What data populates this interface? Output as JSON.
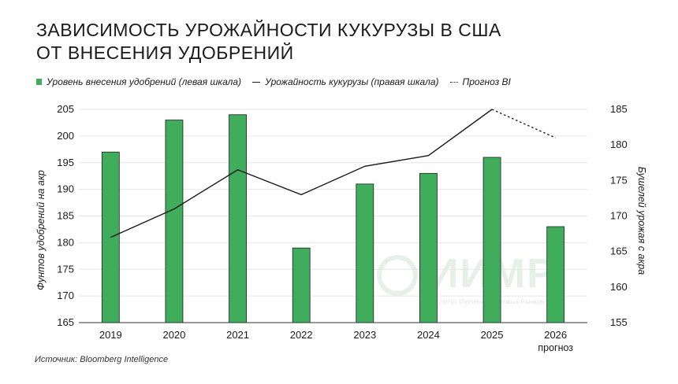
{
  "title": {
    "line1": "Зависимость урожайности кукурузы в США",
    "line2": "от внесения удобрений"
  },
  "legend": {
    "bars": "Уровень внесения удобрений (левая шкала)",
    "line": "Урожайность кукурузы (правая шкала)",
    "forecast": "Прогноз BI"
  },
  "source": "Источник: Bloomberg Intelligence",
  "watermark": {
    "name": "ИИМР",
    "subtitle": "Институт Изучения Мировых Рынков"
  },
  "colors": {
    "bar": "#3fad5b",
    "bar_edge": "#1f1f1f",
    "line": "#1a1a1a",
    "grid": "#e6e6e6"
  },
  "chart_data": {
    "type": "bar",
    "categories": [
      "2019",
      "2020",
      "2021",
      "2022",
      "2023",
      "2024",
      "2025",
      "2026"
    ],
    "category_sublabels": [
      "",
      "",
      "",
      "",
      "",
      "",
      "",
      "прогноз"
    ],
    "series": [
      {
        "name": "Уровень внесения удобрений (левая шкала)",
        "type": "bar",
        "axis": "left",
        "values": [
          197,
          203,
          204,
          179,
          191,
          193,
          196,
          183
        ]
      },
      {
        "name": "Урожайность кукурузы (правая шкала)",
        "type": "line",
        "axis": "right",
        "values": [
          167,
          171,
          176.5,
          173,
          177,
          178.5,
          185,
          null
        ]
      },
      {
        "name": "Прогноз BI",
        "type": "line-dotted",
        "axis": "right",
        "values": [
          null,
          null,
          null,
          null,
          null,
          null,
          185,
          181
        ]
      }
    ],
    "ylabel": "Фунтов удобрений на акр",
    "y2label": "Бушелей урожая с акра",
    "ylim": [
      165,
      205
    ],
    "yticks": [
      165,
      170,
      175,
      180,
      185,
      190,
      195,
      200,
      205
    ],
    "y2lim": [
      155,
      185
    ],
    "y2ticks": [
      155,
      160,
      165,
      170,
      175,
      180,
      185
    ],
    "grid": true
  }
}
